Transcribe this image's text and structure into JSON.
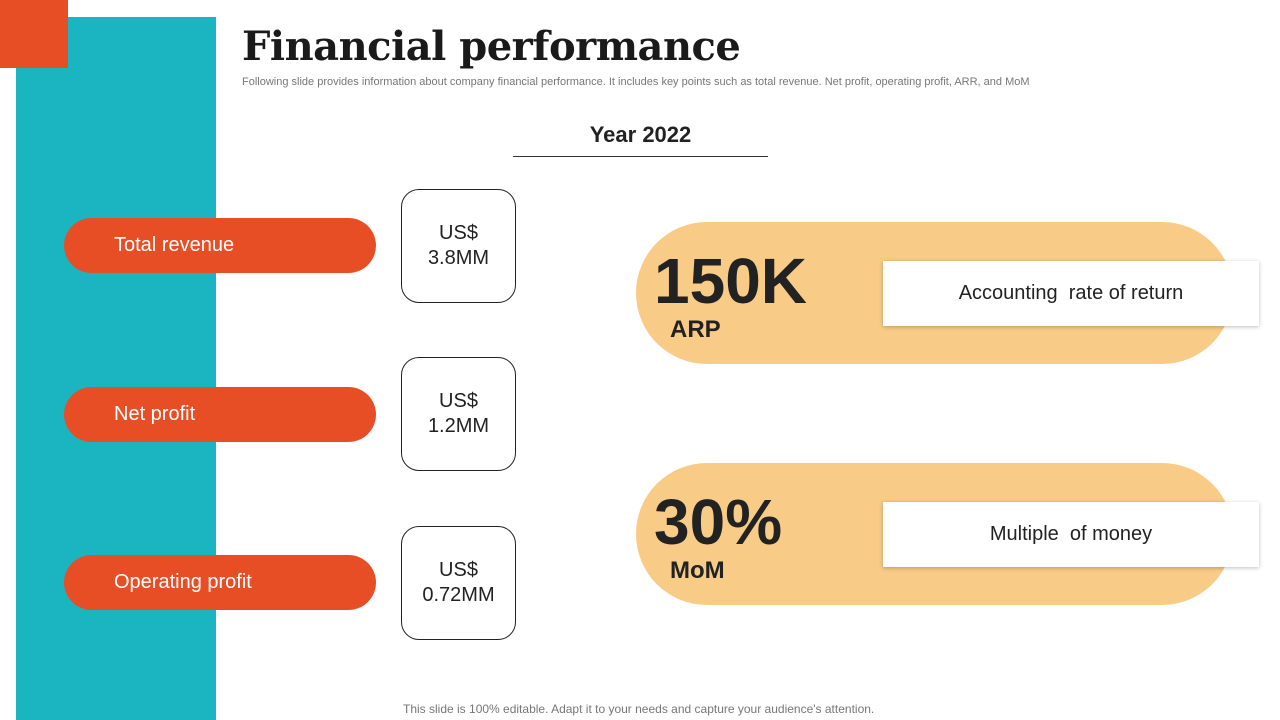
{
  "slide": {
    "title": "Financial performance",
    "subtitle": "Following slide provides information about company financial performance. It includes key points such as total revenue. Net profit, operating profit, ARR, and MoM",
    "year_label": "Year 2022",
    "footer": "This slide is 100% editable. Adapt it to your needs and capture your audience's attention."
  },
  "kpis": [
    {
      "label": "Total revenue",
      "currency": "US$",
      "amount": "3.8MM"
    },
    {
      "label": "Net profit",
      "currency": "US$",
      "amount": "1.2MM"
    },
    {
      "label": "Operating profit",
      "currency": "US$",
      "amount": "0.72MM"
    }
  ],
  "metrics": [
    {
      "value": "150K",
      "abbr": "ARP",
      "description": "Accounting  rate of return"
    },
    {
      "value": "30%",
      "abbr": "MoM",
      "description": "Multiple  of money"
    }
  ],
  "colors": {
    "teal": "#1bb5c1",
    "orange": "#e84e25",
    "peach": "#f8cb86"
  }
}
